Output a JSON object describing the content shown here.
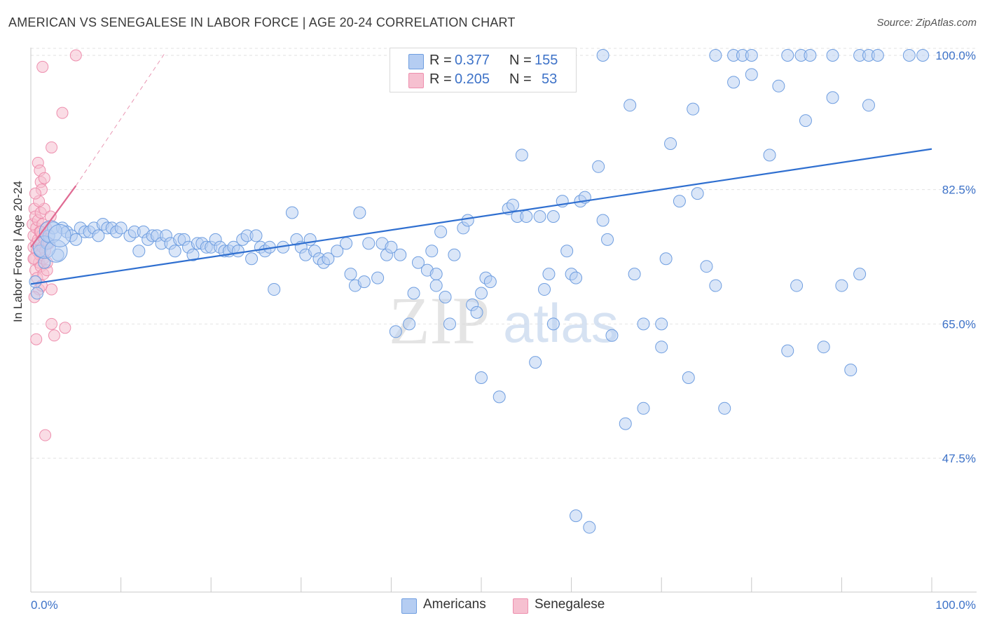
{
  "title": "AMERICAN VS SENEGALESE IN LABOR FORCE | AGE 20-24 CORRELATION CHART",
  "source": "Source: ZipAtlas.com",
  "stats": {
    "r_label": "R =",
    "n_label": "N =",
    "americans": {
      "r": "0.377",
      "n": "155"
    },
    "senegalese": {
      "r": "0.205",
      "n": "53"
    }
  },
  "colors": {
    "americans_fill": "#b5cdf2",
    "americans_stroke": "#6f9ee0",
    "americans_line": "#2f6fd0",
    "senegalese_fill": "#f6c0d0",
    "senegalese_stroke": "#ee8fae",
    "senegalese_line": "#e06b93",
    "tick_label": "#3d72c8"
  },
  "watermark": {
    "zip": "ZIP",
    "atlas": "atlas"
  },
  "chart_data": {
    "type": "scatter",
    "title": "AMERICAN VS SENEGALESE IN LABOR FORCE | AGE 20-24 CORRELATION CHART",
    "xlabel": "",
    "ylabel": "In Labor Force | Age 20-24",
    "xlim": [
      0,
      100
    ],
    "ylim": [
      31.5,
      102
    ],
    "x_tick_labels": [
      "0.0%",
      "100.0%"
    ],
    "y_ticks": [
      47.5,
      65.0,
      82.5,
      100.0
    ],
    "y_tick_labels": [
      "47.5%",
      "65.0%",
      "82.5%",
      "100.0%"
    ],
    "legend": [
      "Americans",
      "Senegalese"
    ],
    "series": [
      {
        "name": "Americans",
        "trend": {
          "x": [
            0,
            100
          ],
          "y": [
            70.2,
            87.8
          ]
        },
        "points": [
          [
            0.5,
            70.5
          ],
          [
            0.7,
            69.0
          ],
          [
            1.0,
            74.5
          ],
          [
            1.5,
            73.0
          ],
          [
            1.8,
            75.5
          ],
          [
            2.0,
            76.5
          ],
          [
            2.5,
            77.5
          ],
          [
            3.0,
            74.0
          ],
          [
            3.5,
            77.5
          ],
          [
            4.0,
            77.0
          ],
          [
            4.5,
            76.5
          ],
          [
            5.0,
            76.0
          ],
          [
            5.5,
            77.5
          ],
          [
            6.0,
            77.0
          ],
          [
            6.5,
            77.0
          ],
          [
            7.0,
            77.5
          ],
          [
            7.5,
            76.5
          ],
          [
            8.0,
            78.0
          ],
          [
            8.5,
            77.5
          ],
          [
            9.0,
            77.5
          ],
          [
            9.5,
            77.0
          ],
          [
            10.0,
            77.5
          ],
          [
            11.0,
            76.5
          ],
          [
            11.5,
            77.0
          ],
          [
            12.0,
            74.5
          ],
          [
            12.5,
            77.0
          ],
          [
            13.0,
            76.0
          ],
          [
            13.5,
            76.5
          ],
          [
            14.0,
            76.5
          ],
          [
            14.5,
            75.5
          ],
          [
            15.0,
            76.5
          ],
          [
            15.5,
            75.5
          ],
          [
            16.0,
            74.5
          ],
          [
            16.5,
            76.0
          ],
          [
            17.0,
            76.0
          ],
          [
            17.5,
            75.0
          ],
          [
            18.0,
            74.0
          ],
          [
            18.5,
            75.5
          ],
          [
            19.0,
            75.5
          ],
          [
            19.5,
            75.0
          ],
          [
            20.0,
            75.0
          ],
          [
            20.5,
            76.0
          ],
          [
            21.0,
            75.0
          ],
          [
            21.5,
            74.5
          ],
          [
            22.0,
            74.5
          ],
          [
            22.5,
            75.0
          ],
          [
            23.0,
            74.5
          ],
          [
            23.5,
            76.0
          ],
          [
            24.0,
            76.5
          ],
          [
            24.5,
            73.5
          ],
          [
            25.0,
            76.5
          ],
          [
            25.5,
            75.0
          ],
          [
            26.0,
            74.5
          ],
          [
            26.5,
            75.0
          ],
          [
            27.0,
            69.5
          ],
          [
            28.0,
            75.0
          ],
          [
            29.0,
            79.5
          ],
          [
            29.5,
            76.0
          ],
          [
            30.0,
            75.0
          ],
          [
            30.5,
            74.0
          ],
          [
            31.0,
            76.0
          ],
          [
            31.5,
            74.5
          ],
          [
            32.0,
            73.5
          ],
          [
            32.5,
            73.0
          ],
          [
            33.0,
            73.5
          ],
          [
            34.0,
            74.5
          ],
          [
            35.0,
            75.5
          ],
          [
            35.5,
            71.5
          ],
          [
            36.0,
            70.0
          ],
          [
            36.5,
            79.5
          ],
          [
            37.0,
            70.5
          ],
          [
            37.5,
            75.5
          ],
          [
            38.5,
            71.0
          ],
          [
            39.0,
            75.5
          ],
          [
            39.5,
            74.0
          ],
          [
            40.0,
            75.0
          ],
          [
            40.5,
            64.0
          ],
          [
            41.0,
            74.0
          ],
          [
            42.0,
            65.0
          ],
          [
            42.5,
            69.0
          ],
          [
            43.0,
            73.0
          ],
          [
            44.0,
            72.0
          ],
          [
            44.5,
            74.5
          ],
          [
            45.0,
            71.5
          ],
          [
            45.5,
            77.0
          ],
          [
            46.0,
            68.5
          ],
          [
            46.5,
            65.0
          ],
          [
            47.0,
            74.0
          ],
          [
            48.0,
            77.5
          ],
          [
            48.5,
            78.5
          ],
          [
            49.0,
            67.5
          ],
          [
            49.5,
            66.5
          ],
          [
            50.0,
            69.0
          ],
          [
            50.5,
            71.0
          ],
          [
            51.0,
            70.5
          ],
          [
            52.0,
            55.5
          ],
          [
            53.0,
            80.0
          ],
          [
            53.5,
            80.5
          ],
          [
            54.0,
            79.0
          ],
          [
            54.5,
            87.0
          ],
          [
            55.0,
            79.0
          ],
          [
            56.0,
            60.0
          ],
          [
            56.5,
            79.0
          ],
          [
            57.0,
            69.5
          ],
          [
            57.5,
            71.5
          ],
          [
            58.0,
            79.0
          ],
          [
            59.0,
            81.0
          ],
          [
            59.5,
            74.5
          ],
          [
            60.0,
            71.5
          ],
          [
            60.5,
            71.0
          ],
          [
            61.0,
            81.0
          ],
          [
            61.5,
            81.5
          ],
          [
            63.0,
            85.5
          ],
          [
            63.5,
            78.5
          ],
          [
            64.0,
            76.0
          ],
          [
            64.5,
            63.5
          ],
          [
            66.0,
            52.0
          ],
          [
            66.5,
            93.5
          ],
          [
            67.0,
            71.5
          ],
          [
            68.0,
            65.0
          ],
          [
            70.0,
            62.0
          ],
          [
            70.5,
            73.5
          ],
          [
            71.0,
            88.5
          ],
          [
            72.0,
            81.0
          ],
          [
            73.0,
            58.0
          ],
          [
            73.5,
            93.0
          ],
          [
            74.0,
            82.0
          ],
          [
            75.0,
            72.5
          ],
          [
            76.0,
            70.0
          ],
          [
            77.0,
            54.0
          ],
          [
            78.0,
            96.5
          ],
          [
            80.0,
            97.5
          ],
          [
            82.0,
            87.0
          ],
          [
            83.0,
            96.0
          ],
          [
            84.0,
            61.5
          ],
          [
            85.0,
            70.0
          ],
          [
            86.0,
            91.5
          ],
          [
            88.0,
            62.0
          ],
          [
            89.0,
            94.5
          ],
          [
            90.0,
            70.0
          ],
          [
            91.0,
            59.0
          ],
          [
            92.0,
            71.5
          ],
          [
            93.0,
            93.5
          ],
          [
            76.0,
            100.0
          ],
          [
            78.0,
            100.0
          ],
          [
            79.0,
            100.0
          ],
          [
            80.0,
            100.0
          ],
          [
            84.0,
            100.0
          ],
          [
            85.5,
            100.0
          ],
          [
            86.5,
            100.0
          ],
          [
            89.0,
            100.0
          ],
          [
            92.0,
            100.0
          ],
          [
            93.0,
            100.0
          ],
          [
            94.0,
            100.0
          ],
          [
            97.5,
            100.0
          ],
          [
            99.0,
            100.0
          ],
          [
            55.0,
            100.0
          ],
          [
            63.5,
            100.0
          ],
          [
            62.0,
            38.5
          ],
          [
            60.5,
            40.0
          ],
          [
            58.0,
            65.0
          ],
          [
            45.0,
            70.0
          ],
          [
            50.0,
            58.0
          ],
          [
            68.0,
            54.0
          ],
          [
            70.0,
            65.0
          ]
        ],
        "large_points": [
          [
            1.5,
            75.0
          ],
          [
            2.2,
            77.0
          ],
          [
            2.8,
            74.5
          ],
          [
            3.2,
            76.5
          ]
        ]
      },
      {
        "name": "Senegalese",
        "trend": {
          "x": [
            0,
            5.0
          ],
          "y": [
            75.0,
            83.0
          ]
        },
        "trend_extended": {
          "x": [
            5.0,
            15.0
          ],
          "y": [
            83.0,
            100.5
          ]
        },
        "points": [
          [
            0.2,
            78.0
          ],
          [
            0.3,
            76.5
          ],
          [
            0.3,
            75.0
          ],
          [
            0.4,
            80.0
          ],
          [
            0.4,
            73.5
          ],
          [
            0.5,
            79.0
          ],
          [
            0.5,
            72.0
          ],
          [
            0.6,
            77.5
          ],
          [
            0.6,
            75.5
          ],
          [
            0.7,
            74.5
          ],
          [
            0.7,
            71.0
          ],
          [
            0.8,
            78.5
          ],
          [
            0.8,
            76.0
          ],
          [
            0.9,
            73.0
          ],
          [
            0.9,
            69.5
          ],
          [
            1.0,
            77.0
          ],
          [
            1.0,
            74.0
          ],
          [
            1.1,
            79.5
          ],
          [
            1.1,
            72.5
          ],
          [
            1.2,
            76.5
          ],
          [
            1.2,
            70.0
          ],
          [
            1.3,
            75.0
          ],
          [
            1.3,
            78.0
          ],
          [
            1.4,
            73.5
          ],
          [
            1.4,
            71.5
          ],
          [
            1.5,
            76.0
          ],
          [
            1.5,
            80.0
          ],
          [
            1.6,
            74.5
          ],
          [
            1.7,
            77.5
          ],
          [
            1.8,
            72.0
          ],
          [
            2.0,
            75.5
          ],
          [
            2.2,
            79.0
          ],
          [
            0.8,
            86.0
          ],
          [
            1.0,
            85.0
          ],
          [
            1.1,
            83.5
          ],
          [
            1.2,
            82.5
          ],
          [
            1.5,
            84.0
          ],
          [
            2.3,
            88.0
          ],
          [
            3.5,
            92.5
          ],
          [
            1.3,
            98.5
          ],
          [
            5.0,
            100.0
          ],
          [
            0.6,
            63.0
          ],
          [
            2.3,
            65.0
          ],
          [
            2.6,
            63.5
          ],
          [
            3.8,
            64.5
          ],
          [
            1.6,
            50.5
          ],
          [
            2.3,
            69.5
          ],
          [
            0.4,
            68.5
          ],
          [
            0.9,
            81.0
          ],
          [
            1.8,
            73.0
          ],
          [
            0.5,
            82.0
          ],
          [
            1.1,
            77.0
          ],
          [
            0.3,
            73.5
          ]
        ]
      }
    ]
  }
}
